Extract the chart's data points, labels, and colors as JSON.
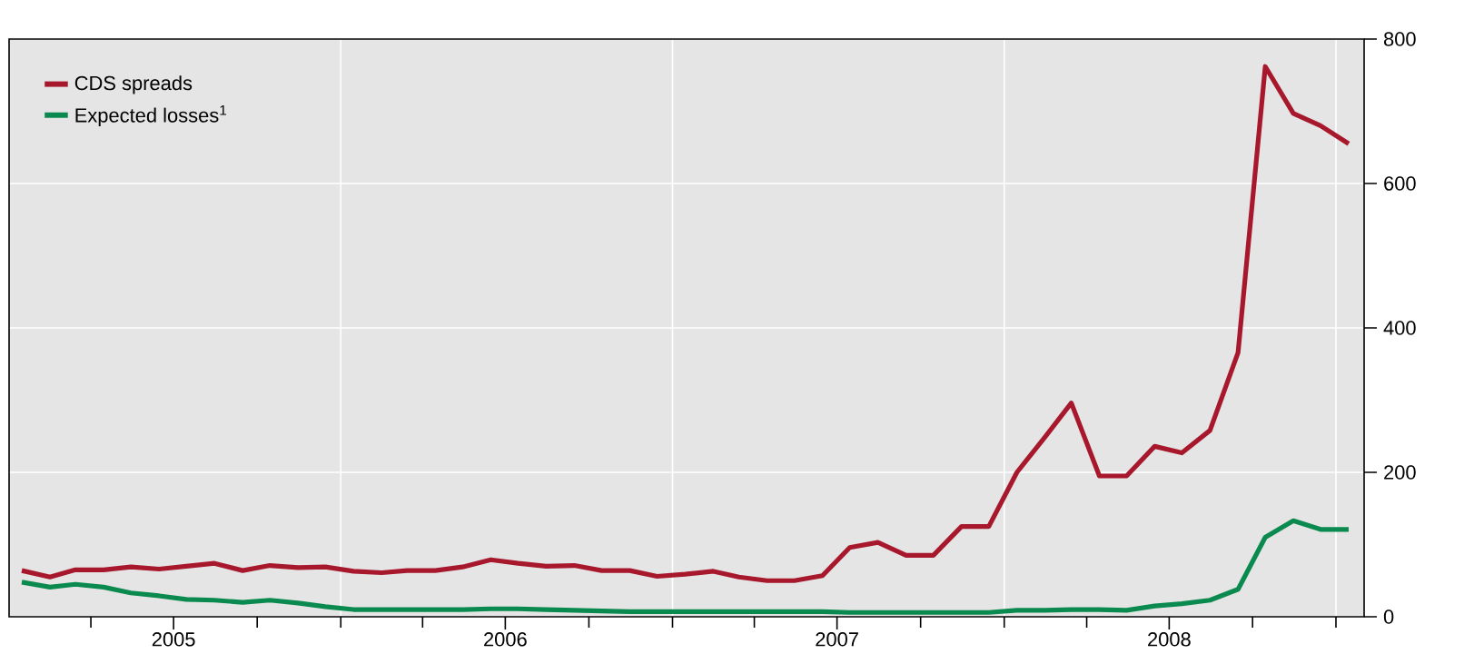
{
  "chart_data": {
    "type": "line",
    "x": [
      "2005-01-15",
      "2005-02-15",
      "2005-03-15",
      "2005-04-15",
      "2005-05-15",
      "2005-06-15",
      "2005-07-15",
      "2005-08-15",
      "2005-09-15",
      "2005-10-15",
      "2005-11-15",
      "2005-12-15",
      "2006-01-15",
      "2006-02-15",
      "2006-03-15",
      "2006-04-15",
      "2006-05-15",
      "2006-06-15",
      "2006-07-15",
      "2006-08-15",
      "2006-09-15",
      "2006-10-15",
      "2006-11-15",
      "2006-12-15",
      "2007-01-15",
      "2007-02-15",
      "2007-03-15",
      "2007-04-15",
      "2007-05-15",
      "2007-06-15",
      "2007-07-15",
      "2007-08-15",
      "2007-09-15",
      "2007-10-15",
      "2007-11-15",
      "2007-12-15",
      "2008-01-15",
      "2008-02-15",
      "2008-03-15",
      "2008-04-15",
      "2008-05-15",
      "2008-06-15",
      "2008-07-15",
      "2008-08-15",
      "2008-09-15",
      "2008-10-15",
      "2008-11-15",
      "2008-12-15",
      "2009-01-15"
    ],
    "series": [
      {
        "name": "CDS spreads",
        "color": "#a8182d",
        "values": [
          64,
          55,
          65,
          65,
          69,
          66,
          70,
          74,
          64,
          71,
          68,
          69,
          63,
          61,
          64,
          64,
          69,
          79,
          74,
          70,
          71,
          64,
          64,
          56,
          59,
          63,
          55,
          50,
          50,
          57,
          96,
          103,
          85,
          85,
          125,
          125,
          200,
          249,
          296,
          195,
          195,
          236,
          227,
          258,
          366,
          762,
          697,
          680,
          655
        ]
      },
      {
        "name": "Expected losses$^{1}$",
        "color": "#0a8a4e",
        "values": [
          48,
          41,
          45,
          41,
          33,
          29,
          24,
          23,
          20,
          23,
          19,
          14,
          10,
          10,
          10,
          10,
          10,
          11,
          11,
          10,
          9,
          8,
          7,
          7,
          7,
          7,
          7,
          7,
          7,
          7,
          6,
          6,
          6,
          6,
          6,
          6,
          9,
          9,
          10,
          10,
          9,
          15,
          18,
          23,
          38,
          110,
          133,
          121,
          121
        ]
      }
    ],
    "xlim": [
      "2005-01-01",
      "2009-02-01"
    ],
    "xticks": [
      {
        "value": "2005-04-01",
        "label": null
      },
      {
        "value": "2005-07-01",
        "label": "2005"
      },
      {
        "value": "2005-10-01",
        "label": null
      },
      {
        "value": "2006-01-01",
        "label": null
      },
      {
        "value": "2006-04-01",
        "label": null
      },
      {
        "value": "2006-07-01",
        "label": "2006"
      },
      {
        "value": "2006-10-01",
        "label": null
      },
      {
        "value": "2007-01-01",
        "label": null
      },
      {
        "value": "2007-04-01",
        "label": null
      },
      {
        "value": "2007-07-01",
        "label": "2007"
      },
      {
        "value": "2007-10-01",
        "label": null
      },
      {
        "value": "2008-01-01",
        "label": null
      },
      {
        "value": "2008-04-01",
        "label": null
      },
      {
        "value": "2008-07-01",
        "label": "2008"
      },
      {
        "value": "2008-10-01",
        "label": null
      },
      {
        "value": "2009-01-01",
        "label": null
      }
    ],
    "ylim": [
      0,
      800
    ],
    "yticks": [
      0,
      200,
      400,
      600,
      800
    ],
    "grid": true,
    "legend": "top left",
    "marker": "none",
    "line_style": "solid"
  }
}
